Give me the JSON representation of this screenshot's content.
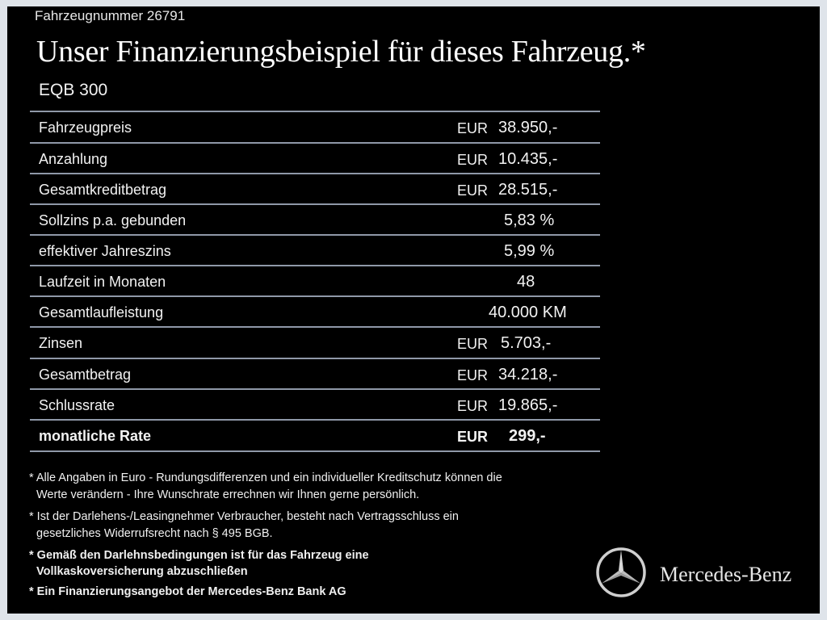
{
  "header": {
    "vehicle_number": "Fahrzeugnummer  26791",
    "title": "Unser Finanzierungsbeispiel für dieses Fahrzeug.*",
    "model": "EQB 300"
  },
  "rows": [
    {
      "label": "Fahrzeugpreis",
      "currency": "EUR",
      "value": "38.950,-"
    },
    {
      "label": "Anzahlung",
      "currency": "EUR",
      "value": "10.435,-"
    },
    {
      "label": "Gesamtkreditbetrag",
      "currency": "EUR",
      "value": "28.515,-"
    },
    {
      "label": "Sollzins p.a. gebunden",
      "value": "5,83 %"
    },
    {
      "label": "effektiver Jahreszins",
      "value": "5,99 %"
    },
    {
      "label": "Laufzeit in Monaten",
      "value": "48"
    },
    {
      "label": "Gesamtlaufleistung",
      "value": "40.000 KM"
    },
    {
      "label": "Zinsen",
      "currency": "EUR",
      "value": "5.703,-"
    },
    {
      "label": "Gesamtbetrag",
      "currency": "EUR",
      "value": "34.218,-"
    },
    {
      "label": "Schlussrate",
      "currency": "EUR",
      "value": "19.865,-"
    },
    {
      "label": "monatliche Rate",
      "currency": "EUR",
      "value": "299,-"
    }
  ],
  "notes": [
    "* Alle Angaben in Euro - Rundungsdifferenzen und ein individueller Kreditschutz können die",
    "Werte verändern - Ihre Wunschrate errechnen wir Ihnen gerne persönlich.",
    "* Ist der Darlehens-/Leasingnehmer Verbraucher, besteht nach Vertragsschluss ein",
    "gesetzliches  Widerrufsrecht nach § 495 BGB.",
    "* Gemäß den Darlehnsbedingungen ist für das Fahrzeug eine",
    "Vollkaskoversicherung abzuschließen",
    "* Ein Finanzierungsangebot der Mercedes-Benz Bank AG"
  ],
  "brand": {
    "name": "Mercedes-Benz",
    "logo_icon": "mercedes-star-icon"
  },
  "colors": {
    "background": "#000000",
    "divider": "#8f98a8",
    "frame": "#dfe4ea"
  }
}
